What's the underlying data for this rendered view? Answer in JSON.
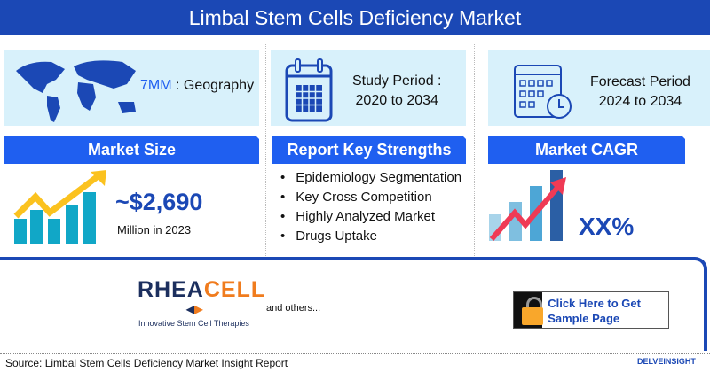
{
  "title": "Limbal Stem Cells Deficiency Market",
  "geography": {
    "highlight": "7MM",
    "label": " : Geography"
  },
  "study_period": {
    "label": "Study Period :",
    "value": "2020 to 2034"
  },
  "forecast_period": {
    "label": "Forecast Period",
    "value": "2024 to 2034"
  },
  "market_size": {
    "header": "Market Size",
    "value": "~$2,690",
    "caption": "Million in 2023"
  },
  "key_strengths": {
    "header": "Report Key Strengths",
    "items": [
      "Epidemiology Segmentation",
      "Key Cross Competition",
      "Highly Analyzed Market",
      "Drugs Uptake"
    ]
  },
  "cagr": {
    "header": "Market CAGR",
    "value": "XX%"
  },
  "companies": {
    "logo": "RHEACELL",
    "logo_tagline": "Innovative Stem Cell Therapies",
    "others": "and others..."
  },
  "cta": {
    "label": "Click Here to Get Sample Page"
  },
  "source": "Source: Limbal Stem Cells Deficiency Market Insight Report",
  "brand": "DELVEINSIGHT",
  "colors": {
    "title_bg": "#1b48b5",
    "header_bg": "#1f5ff0",
    "panel_bg": "#d8f1fb",
    "accent_orange": "#f07c1e",
    "lock": "#f9a72b"
  }
}
